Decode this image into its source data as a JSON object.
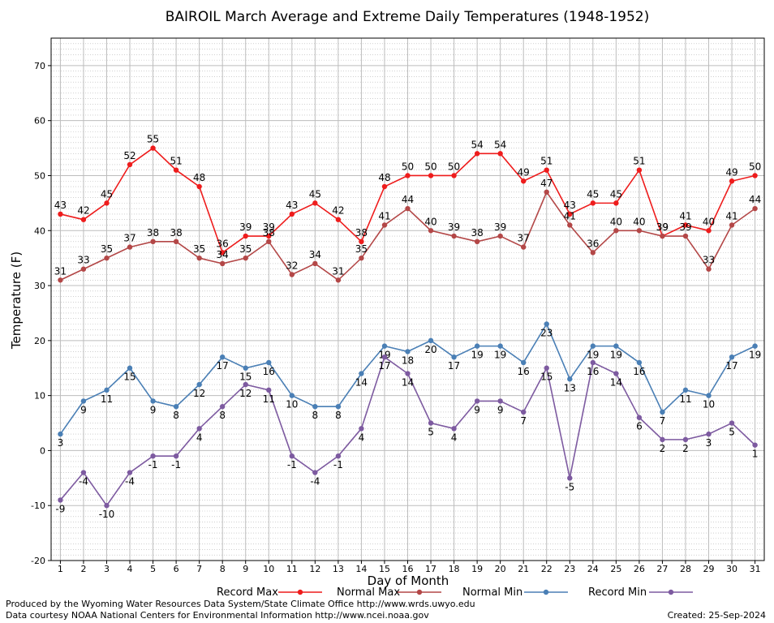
{
  "chart_data": {
    "type": "line",
    "title": "BAIROIL March Average and Extreme Daily Temperatures (1948-1952)",
    "xlabel": "Day of Month",
    "ylabel": "Temperature (F)",
    "x": [
      1,
      2,
      3,
      4,
      5,
      6,
      7,
      8,
      9,
      10,
      11,
      12,
      13,
      14,
      15,
      16,
      17,
      18,
      19,
      20,
      21,
      22,
      23,
      24,
      25,
      26,
      27,
      28,
      29,
      30,
      31
    ],
    "xlim": [
      0.6,
      31.4
    ],
    "ylim": [
      -20,
      75
    ],
    "yticks": [
      -20,
      -10,
      0,
      10,
      20,
      30,
      40,
      50,
      60,
      70
    ],
    "grid": true,
    "legend_position": "bottom",
    "series": [
      {
        "name": "Record Max",
        "color": "#ee1c1c",
        "values": [
          43,
          42,
          45,
          52,
          55,
          51,
          48,
          36,
          39,
          39,
          43,
          45,
          42,
          38,
          48,
          50,
          50,
          50,
          54,
          54,
          49,
          51,
          43,
          45,
          45,
          51,
          39,
          41,
          40,
          49,
          50
        ],
        "labels": [
          "43",
          "42",
          "45",
          "52",
          "55",
          "51",
          "48",
          "36",
          "39",
          "39",
          "43",
          "45",
          "42",
          "38",
          "48",
          "50",
          "50",
          "50",
          "54",
          "54",
          "49",
          "51",
          "43",
          "45",
          "45",
          "51",
          "39",
          "41",
          "40",
          "49",
          "50"
        ]
      },
      {
        "name": "Normal Max",
        "color": "#b34747",
        "values": [
          31,
          33,
          35,
          37,
          38,
          38,
          35,
          34,
          35,
          38,
          32,
          34,
          31,
          35,
          41,
          44,
          40,
          39,
          38,
          39,
          37,
          47,
          41,
          36,
          40,
          40,
          39,
          39,
          33,
          41,
          44
        ],
        "labels": [
          "31",
          "33",
          "35",
          "37",
          "38",
          "38",
          "35",
          "34",
          "35",
          "38",
          "32",
          "34",
          "31",
          "35",
          "41",
          "44",
          "40",
          "39",
          "38",
          "39",
          "37",
          "47",
          "41",
          "36",
          "40",
          "40",
          "39",
          "39",
          "33",
          "41",
          "44"
        ]
      },
      {
        "name": "Normal Min",
        "color": "#4a7fb5",
        "values": [
          3,
          9,
          11,
          15,
          9,
          8,
          12,
          17,
          15,
          16,
          10,
          8,
          8,
          14,
          19,
          18,
          20,
          17,
          19,
          19,
          16,
          23,
          13,
          19,
          19,
          16,
          7,
          11,
          10,
          17,
          19
        ],
        "labels": [
          "3",
          "9",
          "11",
          "15",
          "9",
          "8",
          "12",
          "17",
          "15",
          "16",
          "10",
          "8",
          "8",
          "14",
          "19",
          "18",
          "20",
          "17",
          "19",
          "19",
          "16",
          "23",
          "13",
          "19",
          "19",
          "16",
          "7",
          "11",
          "10",
          "17",
          "19"
        ]
      },
      {
        "name": "Record Min",
        "color": "#7d5aa0",
        "values": [
          -9,
          -4,
          -10,
          -4,
          -1,
          -1,
          4,
          8,
          12,
          11,
          -1,
          -4,
          -1,
          4,
          17,
          14,
          5,
          4,
          9,
          9,
          7,
          15,
          -5,
          16,
          14,
          6,
          2,
          2,
          3,
          5,
          1
        ],
        "labels": [
          "-9",
          "-4",
          "-10",
          "-4",
          "-1",
          "-1",
          "4",
          "8",
          "12",
          "11",
          "-1",
          "-4",
          "-1",
          "4",
          "17",
          "14",
          "5",
          "4",
          "9",
          "9",
          "7",
          "15",
          "-5",
          "16",
          "14",
          "6",
          "2",
          "2",
          "3",
          "5",
          "1"
        ]
      }
    ]
  },
  "footer": {
    "produced_by": "Produced by the Wyoming Water Resources Data System/State Climate Office http://www.wrds.uwyo.edu",
    "courtesy": "Data courtesy NOAA National Centers for Environmental Information http://www.ncei.noaa.gov",
    "created": "Created:  25-Sep-2024"
  }
}
